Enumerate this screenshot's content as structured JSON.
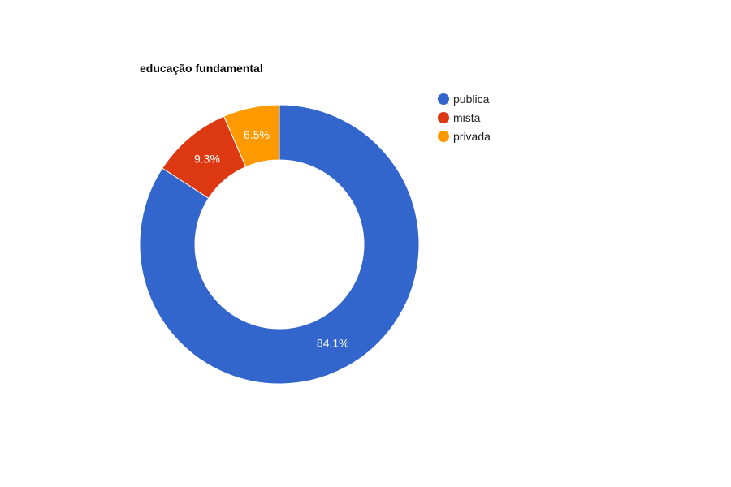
{
  "chart_data": {
    "type": "pie",
    "variant": "donut",
    "title": "educação fundamental",
    "legend_position": "right",
    "slices": [
      {
        "label": "publica",
        "value": 84.1,
        "display": "84.1%",
        "color": "#3366cc"
      },
      {
        "label": "mista",
        "value": 9.3,
        "display": "9.3%",
        "color": "#dc3912"
      },
      {
        "label": "privada",
        "value": 6.5,
        "display": "6.5%",
        "color": "#ff9900"
      }
    ]
  }
}
